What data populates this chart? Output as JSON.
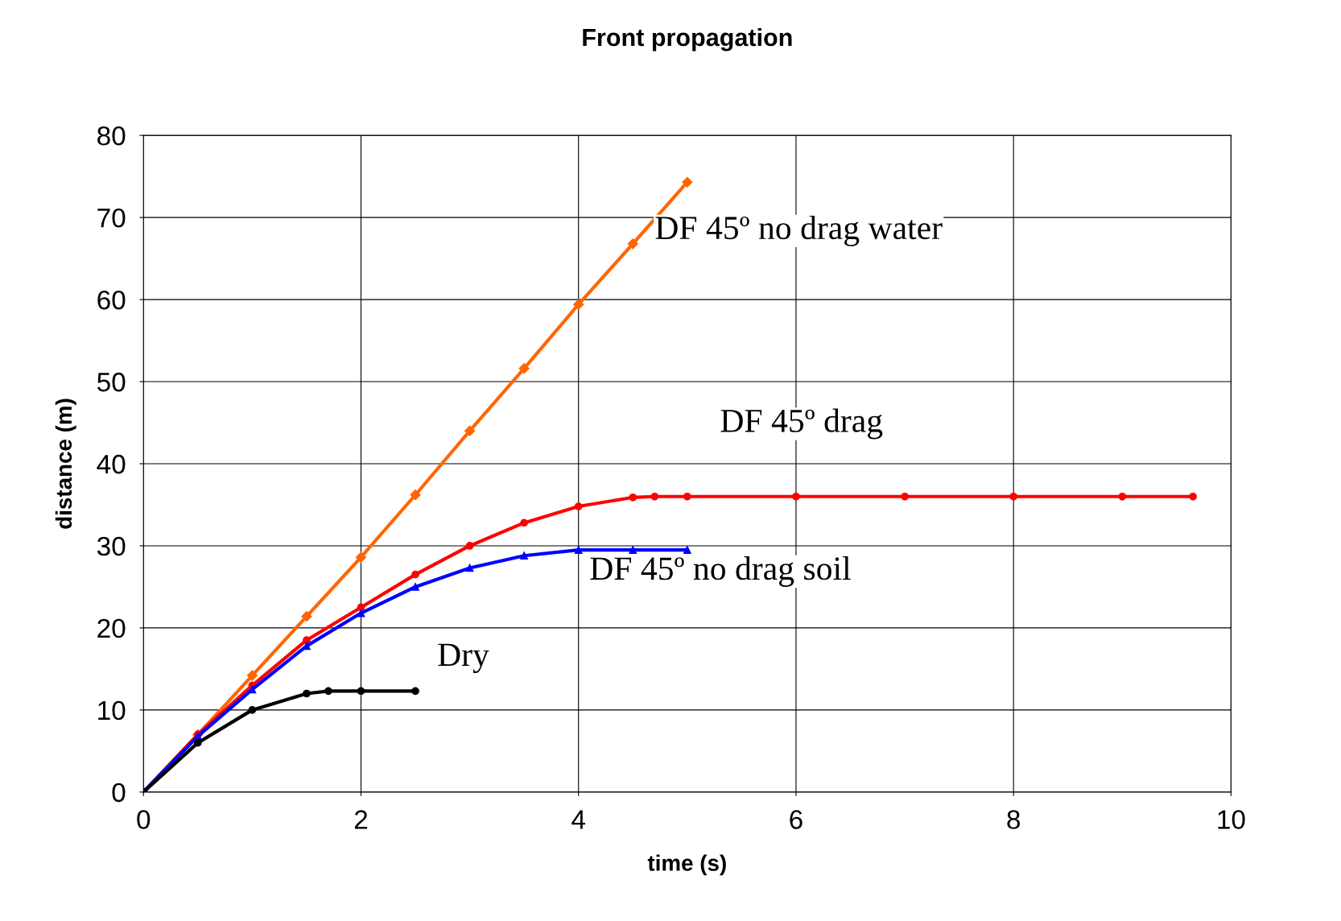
{
  "chart_data": {
    "type": "line",
    "title": "Front propagation",
    "xlabel": "time (s)",
    "ylabel": "distance (m)",
    "xlim": [
      0,
      10
    ],
    "xticks": [
      0,
      2,
      4,
      6,
      8,
      10
    ],
    "ylim": [
      0,
      80
    ],
    "yticks": [
      0,
      10,
      20,
      30,
      40,
      50,
      60,
      70,
      80
    ],
    "grid": true,
    "legend": false,
    "series": [
      {
        "name": "DF 45º no drag water",
        "color": "#ff6600",
        "marker": "diamond",
        "x": [
          0,
          0.5,
          1,
          1.5,
          2,
          2.5,
          3,
          3.5,
          4,
          4.5,
          5
        ],
        "values": [
          0,
          7,
          14.2,
          21.4,
          28.6,
          36.2,
          44,
          51.6,
          59.4,
          66.8,
          74.3
        ]
      },
      {
        "name": "DF 45º drag",
        "color": "#ff0000",
        "marker": "circle",
        "x": [
          0,
          0.5,
          1,
          1.5,
          2,
          2.5,
          3,
          3.5,
          4,
          4.5,
          4.7,
          5,
          6,
          7,
          8,
          9,
          9.65
        ],
        "values": [
          0,
          7,
          13,
          18.5,
          22.5,
          26.5,
          30,
          32.8,
          34.8,
          35.9,
          36,
          36,
          36,
          36,
          36,
          36,
          36
        ]
      },
      {
        "name": "DF 45º no drag soil",
        "color": "#0000ff",
        "marker": "triangle",
        "x": [
          0,
          0.5,
          1,
          1.5,
          2,
          2.5,
          3,
          3.5,
          4,
          4.5,
          5
        ],
        "values": [
          0,
          6.8,
          12.5,
          17.8,
          21.8,
          25,
          27.3,
          28.8,
          29.5,
          29.5,
          29.5
        ]
      },
      {
        "name": "Dry",
        "color": "#000000",
        "marker": "circle",
        "x": [
          0,
          0.5,
          1,
          1.5,
          1.7,
          2,
          2.5
        ],
        "values": [
          0,
          6,
          10,
          12,
          12.3,
          12.3,
          12.3
        ]
      }
    ]
  }
}
